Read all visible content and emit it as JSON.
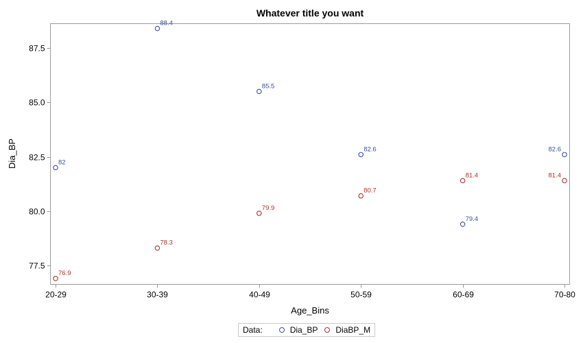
{
  "chart_data": {
    "type": "scatter",
    "title": "Whatever title you want",
    "xlabel": "Age_Bins",
    "ylabel": "Dia_BP",
    "categories": [
      "20-29",
      "30-39",
      "40-49",
      "50-59",
      "60-69",
      "70-80"
    ],
    "yticks": [
      77.5,
      80.0,
      82.5,
      85.0,
      87.5
    ],
    "ytick_labels": [
      "77.5",
      "80.0",
      "82.5",
      "85.0",
      "87.5"
    ],
    "ylim": [
      76.6,
      88.7
    ],
    "grid": false,
    "legend_position": "bottom",
    "series": [
      {
        "name": "Dia_BP",
        "color": "#3a4f9a",
        "marker": "open-circle",
        "values": [
          82,
          88.4,
          85.5,
          82.6,
          79.4,
          82.6
        ],
        "labels": [
          "82",
          "88.4",
          "85.5",
          "82.6",
          "79.4",
          "82.6"
        ]
      },
      {
        "name": "DiaBP_M",
        "color": "#a8322d",
        "marker": "open-circle",
        "values": [
          76.9,
          78.3,
          79.9,
          80.7,
          81.4,
          81.4
        ],
        "labels": [
          "76.9",
          "78.3",
          "79.9",
          "80.7",
          "81.4",
          "81.4"
        ]
      }
    ]
  },
  "legend": {
    "title": "Data:",
    "items": [
      {
        "label": "Dia_BP",
        "color": "#3a4f9a"
      },
      {
        "label": "DiaBP_M",
        "color": "#a8322d"
      }
    ]
  }
}
